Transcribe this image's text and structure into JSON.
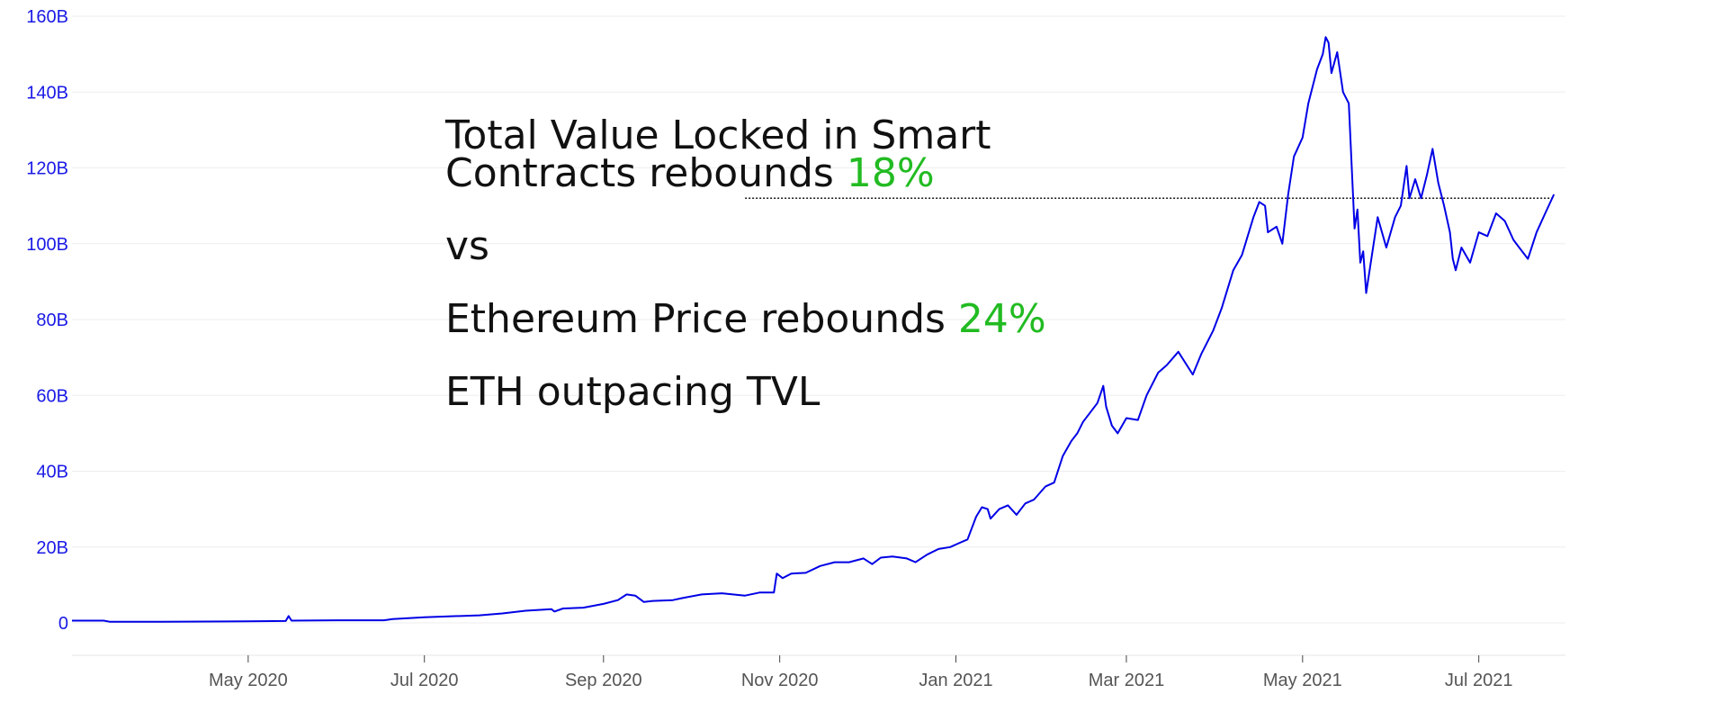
{
  "chart_data": {
    "type": "line",
    "title": "",
    "xlabel": "",
    "ylabel": "",
    "y_unit": "billion USD",
    "ylim": [
      -9,
      160
    ],
    "xlim": [
      "2020-03-01",
      "2021-07-31"
    ],
    "y_ticks": [
      {
        "value": 0,
        "label": "0"
      },
      {
        "value": 20,
        "label": "20B"
      },
      {
        "value": 40,
        "label": "40B"
      },
      {
        "value": 60,
        "label": "60B"
      },
      {
        "value": 80,
        "label": "80B"
      },
      {
        "value": 100,
        "label": "100B"
      },
      {
        "value": 120,
        "label": "120B"
      },
      {
        "value": 140,
        "label": "140B"
      },
      {
        "value": 160,
        "label": "160B"
      }
    ],
    "x_ticks": [
      {
        "date": "2020-05-01",
        "label": "May 2020"
      },
      {
        "date": "2020-07-01",
        "label": "Jul 2020"
      },
      {
        "date": "2020-09-01",
        "label": "Sep 2020"
      },
      {
        "date": "2020-11-01",
        "label": "Nov 2020"
      },
      {
        "date": "2021-01-01",
        "label": "Jan 2021"
      },
      {
        "date": "2021-03-01",
        "label": "Mar 2021"
      },
      {
        "date": "2021-05-01",
        "label": "May 2021"
      },
      {
        "date": "2021-07-01",
        "label": "Jul 2021"
      }
    ],
    "grid": true,
    "series": [
      {
        "name": "Total Value Locked",
        "color": "#0000e6",
        "points": [
          [
            "2020-03-01",
            0.6
          ],
          [
            "2020-03-12",
            0.6
          ],
          [
            "2020-03-14",
            0.3
          ],
          [
            "2020-04-01",
            0.3
          ],
          [
            "2020-05-01",
            0.4
          ],
          [
            "2020-05-14",
            0.5
          ],
          [
            "2020-05-15",
            1.8
          ],
          [
            "2020-05-16",
            0.6
          ],
          [
            "2020-06-01",
            0.7
          ],
          [
            "2020-06-17",
            0.7
          ],
          [
            "2020-06-20",
            1.0
          ],
          [
            "2020-07-01",
            1.5
          ],
          [
            "2020-07-20",
            2.0
          ],
          [
            "2020-07-28",
            2.5
          ],
          [
            "2020-08-05",
            3.2
          ],
          [
            "2020-08-14",
            3.6
          ],
          [
            "2020-08-15",
            3.0
          ],
          [
            "2020-08-18",
            3.8
          ],
          [
            "2020-08-25",
            4.0
          ],
          [
            "2020-09-01",
            5.0
          ],
          [
            "2020-09-06",
            6.0
          ],
          [
            "2020-09-09",
            7.5
          ],
          [
            "2020-09-12",
            7.2
          ],
          [
            "2020-09-15",
            5.5
          ],
          [
            "2020-09-18",
            5.8
          ],
          [
            "2020-09-25",
            6.0
          ],
          [
            "2020-09-28",
            6.5
          ],
          [
            "2020-10-05",
            7.5
          ],
          [
            "2020-10-12",
            7.8
          ],
          [
            "2020-10-20",
            7.2
          ],
          [
            "2020-10-25",
            8.0
          ],
          [
            "2020-10-30",
            8.0
          ],
          [
            "2020-10-31",
            13.0
          ],
          [
            "2020-11-02",
            11.8
          ],
          [
            "2020-11-05",
            13.0
          ],
          [
            "2020-11-10",
            13.2
          ],
          [
            "2020-11-15",
            15.0
          ],
          [
            "2020-11-20",
            16.0
          ],
          [
            "2020-11-25",
            16.0
          ],
          [
            "2020-11-30",
            17.0
          ],
          [
            "2020-12-03",
            15.5
          ],
          [
            "2020-12-06",
            17.2
          ],
          [
            "2020-12-10",
            17.5
          ],
          [
            "2020-12-15",
            17.0
          ],
          [
            "2020-12-18",
            16.0
          ],
          [
            "2020-12-22",
            18.0
          ],
          [
            "2020-12-26",
            19.5
          ],
          [
            "2020-12-30",
            20.0
          ],
          [
            "2021-01-02",
            21.0
          ],
          [
            "2021-01-05",
            22.0
          ],
          [
            "2021-01-08",
            28.0
          ],
          [
            "2021-01-10",
            30.5
          ],
          [
            "2021-01-12",
            30.0
          ],
          [
            "2021-01-13",
            27.5
          ],
          [
            "2021-01-16",
            30.0
          ],
          [
            "2021-01-19",
            31.0
          ],
          [
            "2021-01-22",
            28.5
          ],
          [
            "2021-01-25",
            31.5
          ],
          [
            "2021-01-28",
            32.5
          ],
          [
            "2021-02-01",
            36.0
          ],
          [
            "2021-02-04",
            37.0
          ],
          [
            "2021-02-07",
            44.0
          ],
          [
            "2021-02-10",
            48.0
          ],
          [
            "2021-02-12",
            50.0
          ],
          [
            "2021-02-14",
            53.0
          ],
          [
            "2021-02-16",
            55.0
          ],
          [
            "2021-02-19",
            58.0
          ],
          [
            "2021-02-21",
            62.5
          ],
          [
            "2021-02-22",
            57.0
          ],
          [
            "2021-02-24",
            52.0
          ],
          [
            "2021-02-26",
            50.0
          ],
          [
            "2021-03-01",
            54.0
          ],
          [
            "2021-03-05",
            53.5
          ],
          [
            "2021-03-08",
            60.0
          ],
          [
            "2021-03-12",
            66.0
          ],
          [
            "2021-03-15",
            68.0
          ],
          [
            "2021-03-19",
            71.5
          ],
          [
            "2021-03-24",
            65.5
          ],
          [
            "2021-03-27",
            71.0
          ],
          [
            "2021-03-31",
            77.0
          ],
          [
            "2021-04-03",
            83.0
          ],
          [
            "2021-04-07",
            93.0
          ],
          [
            "2021-04-10",
            97.0
          ],
          [
            "2021-04-14",
            107.0
          ],
          [
            "2021-04-16",
            111.0
          ],
          [
            "2021-04-18",
            110.0
          ],
          [
            "2021-04-19",
            103.0
          ],
          [
            "2021-04-22",
            104.5
          ],
          [
            "2021-04-24",
            100.0
          ],
          [
            "2021-04-26",
            113.0
          ],
          [
            "2021-04-28",
            123.0
          ],
          [
            "2021-05-01",
            128.0
          ],
          [
            "2021-05-03",
            137.0
          ],
          [
            "2021-05-06",
            146.0
          ],
          [
            "2021-05-08",
            150.0
          ],
          [
            "2021-05-09",
            154.5
          ],
          [
            "2021-05-10",
            153.0
          ],
          [
            "2021-05-11",
            145.0
          ],
          [
            "2021-05-13",
            150.5
          ],
          [
            "2021-05-15",
            140.0
          ],
          [
            "2021-05-17",
            137.0
          ],
          [
            "2021-05-19",
            104.0
          ],
          [
            "2021-05-20",
            109.0
          ],
          [
            "2021-05-21",
            95.0
          ],
          [
            "2021-05-22",
            98.0
          ],
          [
            "2021-05-23",
            87.0
          ],
          [
            "2021-05-25",
            97.0
          ],
          [
            "2021-05-27",
            107.0
          ],
          [
            "2021-05-30",
            99.0
          ],
          [
            "2021-06-02",
            107.0
          ],
          [
            "2021-06-04",
            110.0
          ],
          [
            "2021-06-06",
            120.5
          ],
          [
            "2021-06-07",
            112.0
          ],
          [
            "2021-06-09",
            117.0
          ],
          [
            "2021-06-11",
            112.0
          ],
          [
            "2021-06-13",
            118.0
          ],
          [
            "2021-06-15",
            125.0
          ],
          [
            "2021-06-17",
            116.0
          ],
          [
            "2021-06-19",
            110.0
          ],
          [
            "2021-06-21",
            103.0
          ],
          [
            "2021-06-22",
            96.0
          ],
          [
            "2021-06-23",
            93.0
          ],
          [
            "2021-06-25",
            99.0
          ],
          [
            "2021-06-28",
            95.0
          ],
          [
            "2021-07-01",
            103.0
          ],
          [
            "2021-07-04",
            102.0
          ],
          [
            "2021-07-07",
            108.0
          ],
          [
            "2021-07-10",
            106.0
          ],
          [
            "2021-07-13",
            101.0
          ],
          [
            "2021-07-15",
            99.0
          ],
          [
            "2021-07-18",
            96.0
          ],
          [
            "2021-07-21",
            103.0
          ],
          [
            "2021-07-24",
            108.0
          ],
          [
            "2021-07-27",
            113.0
          ]
        ]
      }
    ],
    "reference_line": {
      "y": 112,
      "from": "2020-10-20",
      "to": "2021-07-27",
      "style": "dotted",
      "color": "#000000"
    },
    "annotations": [
      {
        "text": "Total Value Locked in Smart",
        "color": "#111111"
      },
      {
        "text": "Contracts rebounds ",
        "highlight": "18%",
        "highlight_color": "#22bb22"
      },
      {
        "text": "vs"
      },
      {
        "text": "Ethereum Price rebounds ",
        "highlight": "24%",
        "highlight_color": "#22bb22"
      },
      {
        "text": "ETH outpacing TVL"
      }
    ]
  }
}
